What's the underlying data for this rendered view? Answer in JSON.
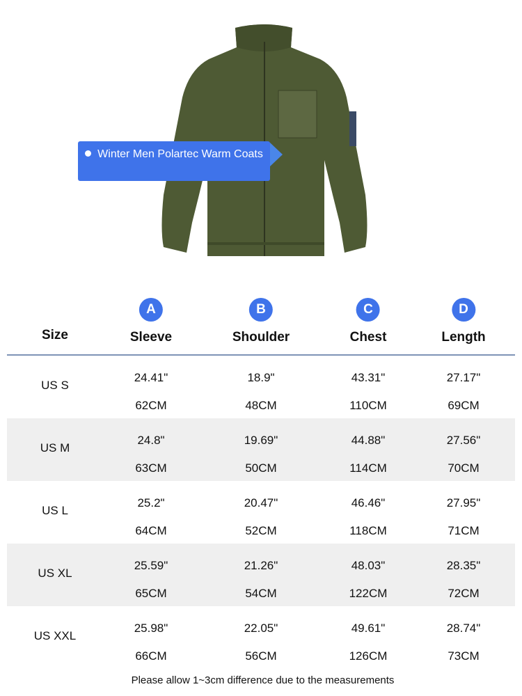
{
  "product": {
    "callout": "Winter Men Polartec Warm Coats",
    "bullet_icon": "dot-icon",
    "callout_color": "#3f73ea",
    "jacket_color": "#4e5a34"
  },
  "table": {
    "size_header": "Size",
    "columns": [
      {
        "badge": "A",
        "label": "Sleeve"
      },
      {
        "badge": "B",
        "label": "Shoulder"
      },
      {
        "badge": "C",
        "label": "Chest"
      },
      {
        "badge": "D",
        "label": "Length"
      }
    ],
    "rows": [
      {
        "size": "US S",
        "inch": [
          "24.41\"",
          "18.9\"",
          "43.31\"",
          "27.17\""
        ],
        "cm": [
          "62CM",
          "48CM",
          "110CM",
          "69CM"
        ]
      },
      {
        "size": "US M",
        "inch": [
          "24.8\"",
          "19.69\"",
          "44.88\"",
          "27.56\""
        ],
        "cm": [
          "63CM",
          "50CM",
          "114CM",
          "70CM"
        ]
      },
      {
        "size": "US L",
        "inch": [
          "25.2\"",
          "20.47\"",
          "46.46\"",
          "27.95\""
        ],
        "cm": [
          "64CM",
          "52CM",
          "118CM",
          "71CM"
        ]
      },
      {
        "size": "US XL",
        "inch": [
          "25.59\"",
          "21.26\"",
          "48.03\"",
          "28.35\""
        ],
        "cm": [
          "65CM",
          "54CM",
          "122CM",
          "72CM"
        ]
      },
      {
        "size": "US XXL",
        "inch": [
          "25.98\"",
          "22.05\"",
          "49.61\"",
          "28.74\""
        ],
        "cm": [
          "66CM",
          "56CM",
          "126CM",
          "73CM"
        ]
      }
    ]
  },
  "footnote": "Please allow 1~3cm difference due to the measurements"
}
